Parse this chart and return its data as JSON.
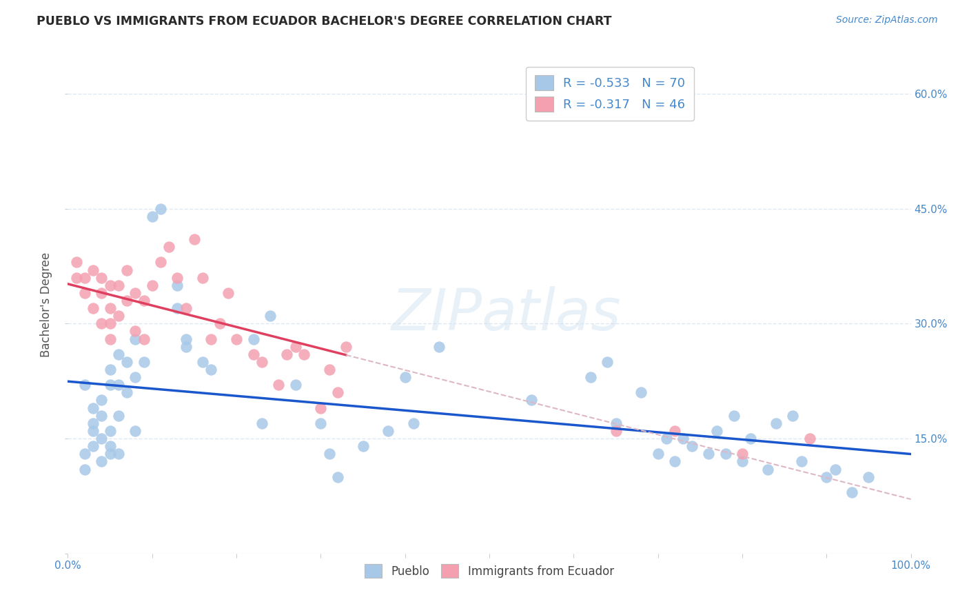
{
  "title": "PUEBLO VS IMMIGRANTS FROM ECUADOR BACHELOR'S DEGREE CORRELATION CHART",
  "source": "Source: ZipAtlas.com",
  "ylabel": "Bachelor's Degree",
  "watermark": "ZIPatlas",
  "xlim": [
    0,
    100
  ],
  "ylim": [
    0,
    65
  ],
  "ytick_vals": [
    0,
    15,
    30,
    45,
    60
  ],
  "ytick_labels_right": [
    "",
    "15.0%",
    "30.0%",
    "45.0%",
    "60.0%"
  ],
  "xtick_vals": [
    0,
    10,
    20,
    30,
    40,
    50,
    60,
    70,
    80,
    90,
    100
  ],
  "xtick_labels": [
    "0.0%",
    "",
    "",
    "",
    "",
    "",
    "",
    "",
    "",
    "",
    "100.0%"
  ],
  "legend_blue_R": "-0.533",
  "legend_blue_N": "70",
  "legend_pink_R": "-0.317",
  "legend_pink_N": "46",
  "pueblo_color": "#a8c8e8",
  "ecuador_color": "#f4a0b0",
  "blue_line_color": "#1a56cc",
  "pink_line_color": "#e04060",
  "pink_dash_color": "#ddb8c4",
  "grid_color": "#dde8f4",
  "tick_color": "#4488cc",
  "title_color": "#2a2a2a",
  "source_color": "#4488cc",
  "background_color": "#ffffff",
  "pueblo_x": [
    2,
    2,
    3,
    3,
    3,
    4,
    4,
    4,
    5,
    5,
    5,
    5,
    6,
    6,
    6,
    7,
    7,
    8,
    8,
    9,
    10,
    11,
    13,
    13,
    14,
    14,
    17,
    22,
    23,
    24,
    27,
    30,
    31,
    32,
    35,
    38,
    40,
    41,
    44,
    55,
    62,
    64,
    65,
    68,
    70,
    71,
    72,
    73,
    74,
    76,
    77,
    78,
    79,
    80,
    81,
    83,
    84,
    86,
    87,
    90,
    91,
    93,
    95,
    3,
    4,
    5,
    16,
    2,
    6,
    8
  ],
  "pueblo_y": [
    11,
    13,
    14,
    16,
    17,
    12,
    15,
    18,
    13,
    14,
    16,
    22,
    13,
    18,
    22,
    21,
    25,
    16,
    23,
    25,
    44,
    45,
    32,
    35,
    28,
    27,
    24,
    28,
    17,
    31,
    22,
    17,
    13,
    10,
    14,
    16,
    23,
    17,
    27,
    20,
    23,
    25,
    17,
    21,
    13,
    15,
    12,
    15,
    14,
    13,
    16,
    13,
    18,
    12,
    15,
    11,
    17,
    18,
    12,
    10,
    11,
    8,
    10,
    19,
    20,
    24,
    25,
    22,
    26,
    28
  ],
  "ecuador_x": [
    1,
    1,
    2,
    2,
    3,
    3,
    4,
    4,
    4,
    5,
    5,
    5,
    5,
    6,
    6,
    7,
    7,
    8,
    8,
    9,
    9,
    10,
    11,
    12,
    13,
    14,
    15,
    16,
    17,
    18,
    19,
    20,
    22,
    23,
    25,
    26,
    27,
    28,
    30,
    31,
    32,
    33,
    65,
    72,
    80,
    88
  ],
  "ecuador_y": [
    36,
    38,
    34,
    36,
    32,
    37,
    30,
    34,
    36,
    28,
    30,
    32,
    35,
    31,
    35,
    33,
    37,
    29,
    34,
    28,
    33,
    35,
    38,
    40,
    36,
    32,
    41,
    36,
    28,
    30,
    34,
    28,
    26,
    25,
    22,
    26,
    27,
    26,
    19,
    24,
    21,
    27,
    16,
    16,
    13,
    15
  ]
}
